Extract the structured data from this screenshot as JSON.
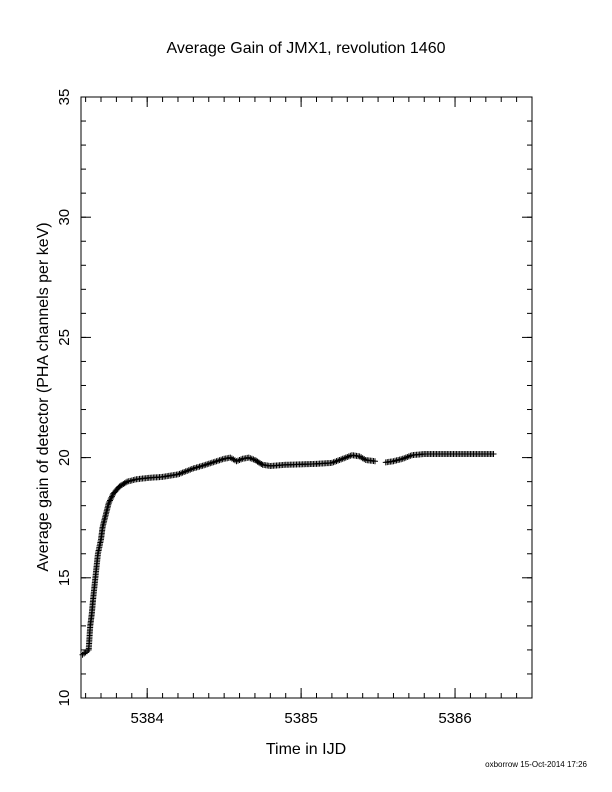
{
  "chart_data": {
    "type": "scatter",
    "title": "Average Gain of JMX1, revolution 1460",
    "xlabel": "Time in IJD",
    "ylabel": "Average gain of detector (PHA channels per keV)",
    "xlim": [
      5383.57,
      5386.5
    ],
    "ylim": [
      10,
      35
    ],
    "xticks": [
      5384,
      5385,
      5386
    ],
    "yticks": [
      10,
      15,
      20,
      25,
      30,
      35
    ],
    "grid": false,
    "marker": "plus",
    "series": [
      {
        "points": [
          [
            5383.58,
            11.8
          ],
          [
            5383.6,
            11.9
          ],
          [
            5383.62,
            12.0
          ],
          [
            5383.63,
            13.0
          ],
          [
            5383.64,
            13.5
          ],
          [
            5383.65,
            14.2
          ],
          [
            5383.66,
            14.8
          ],
          [
            5383.67,
            15.4
          ],
          [
            5383.68,
            16.0
          ],
          [
            5383.7,
            16.6
          ],
          [
            5383.71,
            17.1
          ],
          [
            5383.73,
            17.6
          ],
          [
            5383.75,
            18.1
          ],
          [
            5383.78,
            18.5
          ],
          [
            5383.82,
            18.8
          ],
          [
            5383.87,
            19.0
          ],
          [
            5383.93,
            19.1
          ],
          [
            5384.0,
            19.15
          ],
          [
            5384.1,
            19.2
          ],
          [
            5384.2,
            19.3
          ],
          [
            5384.3,
            19.55
          ],
          [
            5384.38,
            19.7
          ],
          [
            5384.45,
            19.85
          ],
          [
            5384.5,
            19.95
          ],
          [
            5384.54,
            20.0
          ],
          [
            5384.58,
            19.85
          ],
          [
            5384.62,
            19.95
          ],
          [
            5384.66,
            20.0
          ],
          [
            5384.7,
            19.9
          ],
          [
            5384.75,
            19.7
          ],
          [
            5384.8,
            19.65
          ],
          [
            5384.9,
            19.7
          ],
          [
            5385.0,
            19.72
          ],
          [
            5385.1,
            19.74
          ],
          [
            5385.2,
            19.78
          ],
          [
            5385.27,
            19.95
          ],
          [
            5385.33,
            20.1
          ],
          [
            5385.38,
            20.05
          ],
          [
            5385.42,
            19.9
          ],
          [
            5385.48,
            19.85
          ],
          [
            5385.55,
            19.8
          ],
          [
            5385.6,
            19.85
          ],
          [
            5385.66,
            19.95
          ],
          [
            5385.72,
            20.1
          ],
          [
            5385.8,
            20.15
          ],
          [
            5385.9,
            20.15
          ],
          [
            5386.0,
            20.15
          ],
          [
            5386.1,
            20.15
          ],
          [
            5386.2,
            20.15
          ],
          [
            5386.25,
            20.15
          ]
        ]
      }
    ]
  },
  "footer": "oxborrow 15-Oct-2014 17:26"
}
